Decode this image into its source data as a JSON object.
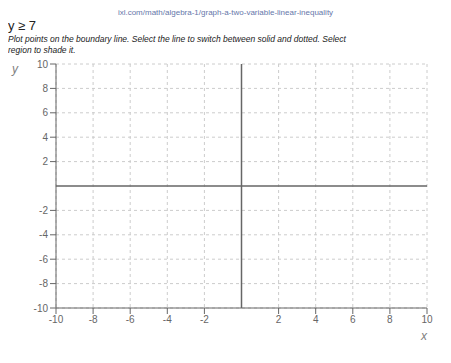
{
  "chart_data": {
    "type": "scatter",
    "title": "y ≥ 7",
    "annotations": [
      "ixl.com/math/algebra-1/graph-a-two-variable-linear-inequality",
      "Plot points on the boundary line. Select the line to switch between solid and dotted. Select",
      "region to shade it."
    ],
    "x": [],
    "values": [],
    "xlabel": "x",
    "ylabel": "y",
    "xlim": [
      -10,
      10
    ],
    "ylim": [
      -10,
      10
    ],
    "xticks": [
      -10,
      -8,
      -6,
      -4,
      -2,
      2,
      4,
      6,
      8,
      10
    ],
    "yticks": [
      -10,
      -8,
      -6,
      -4,
      -2,
      2,
      4,
      6,
      8,
      10
    ],
    "grid": true
  }
}
